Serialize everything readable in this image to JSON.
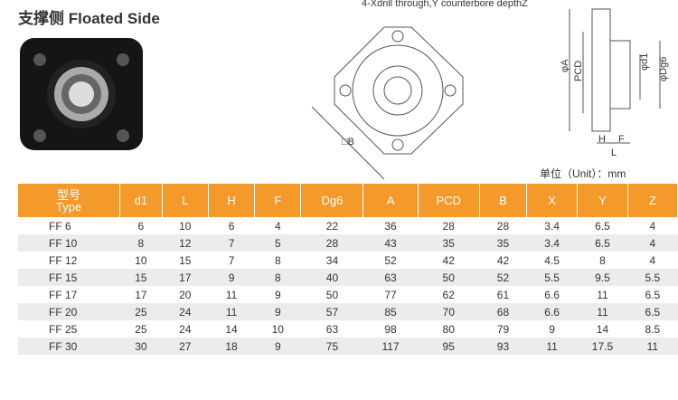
{
  "header": {
    "title": "支撑侧 Floated Side"
  },
  "drawing": {
    "note": "4-Xdrill through,Y counterbore depthZ",
    "square": "□B",
    "outer": "φA",
    "pcd": "PCD",
    "bore": "φd1",
    "spigot": "φDg6",
    "h": "H",
    "f": "F",
    "l": "L"
  },
  "unit": "单位（Unit）：mm",
  "table": {
    "header": [
      "型号\nType",
      "d1",
      "L",
      "H",
      "F",
      "Dg6",
      "A",
      "PCD",
      "B",
      "X",
      "Y",
      "Z"
    ],
    "rows": [
      [
        "FF 6",
        "6",
        "10",
        "6",
        "4",
        "22",
        "36",
        "28",
        "28",
        "3.4",
        "6.5",
        "4"
      ],
      [
        "FF 10",
        "8",
        "12",
        "7",
        "5",
        "28",
        "43",
        "35",
        "35",
        "3.4",
        "6.5",
        "4"
      ],
      [
        "FF 12",
        "10",
        "15",
        "7",
        "8",
        "34",
        "52",
        "42",
        "42",
        "4.5",
        "8",
        "4"
      ],
      [
        "FF 15",
        "15",
        "17",
        "9",
        "8",
        "40",
        "63",
        "50",
        "52",
        "5.5",
        "9.5",
        "5.5"
      ],
      [
        "FF 17",
        "17",
        "20",
        "11",
        "9",
        "50",
        "77",
        "62",
        "61",
        "6.6",
        "11",
        "6.5"
      ],
      [
        "FF 20",
        "25",
        "24",
        "11",
        "9",
        "57",
        "85",
        "70",
        "68",
        "6.6",
        "11",
        "6.5"
      ],
      [
        "FF 25",
        "25",
        "24",
        "14",
        "10",
        "63",
        "98",
        "80",
        "79",
        "9",
        "14",
        "8.5"
      ],
      [
        "FF 30",
        "30",
        "27",
        "18",
        "9",
        "75",
        "117",
        "95",
        "93",
        "11",
        "17.5",
        "11"
      ]
    ]
  }
}
